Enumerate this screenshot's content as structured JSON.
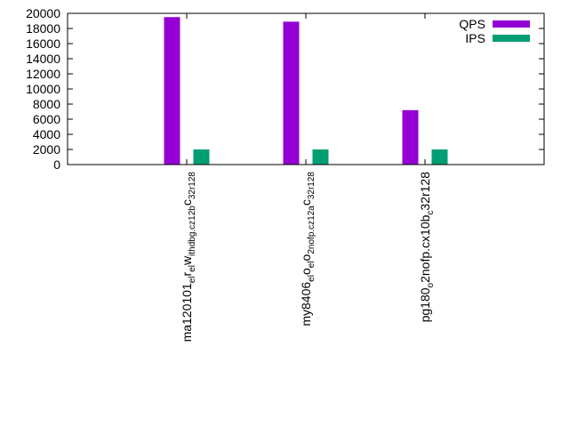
{
  "chart_data": {
    "type": "bar",
    "title": "",
    "xlabel": "",
    "ylabel": "",
    "ylim": [
      0,
      20000
    ],
    "yticks": [
      "0",
      "2000",
      "4000",
      "6000",
      "8000",
      "10000",
      "12000",
      "14000",
      "16000",
      "18000",
      "20000"
    ],
    "grid": false,
    "legend_position": "top-right",
    "categories": [
      {
        "parts": [
          "ma120101",
          "el",
          "r",
          "el",
          "w",
          "ithdbg.cz12b",
          "c",
          "32r128"
        ]
      },
      {
        "parts": [
          "my8406",
          "el",
          "o",
          "el",
          "o",
          "2nofp.cz12a",
          "c",
          "32r128"
        ]
      },
      {
        "parts": [
          "pg180",
          "o",
          "2nofp.cx10b",
          "c",
          "32r128"
        ]
      }
    ],
    "series": [
      {
        "name": "QPS",
        "color": "#9400d3",
        "values": [
          19500,
          18900,
          7200
        ]
      },
      {
        "name": "IPS",
        "color": "#009e73",
        "values": [
          2000,
          2000,
          2000
        ]
      }
    ]
  }
}
